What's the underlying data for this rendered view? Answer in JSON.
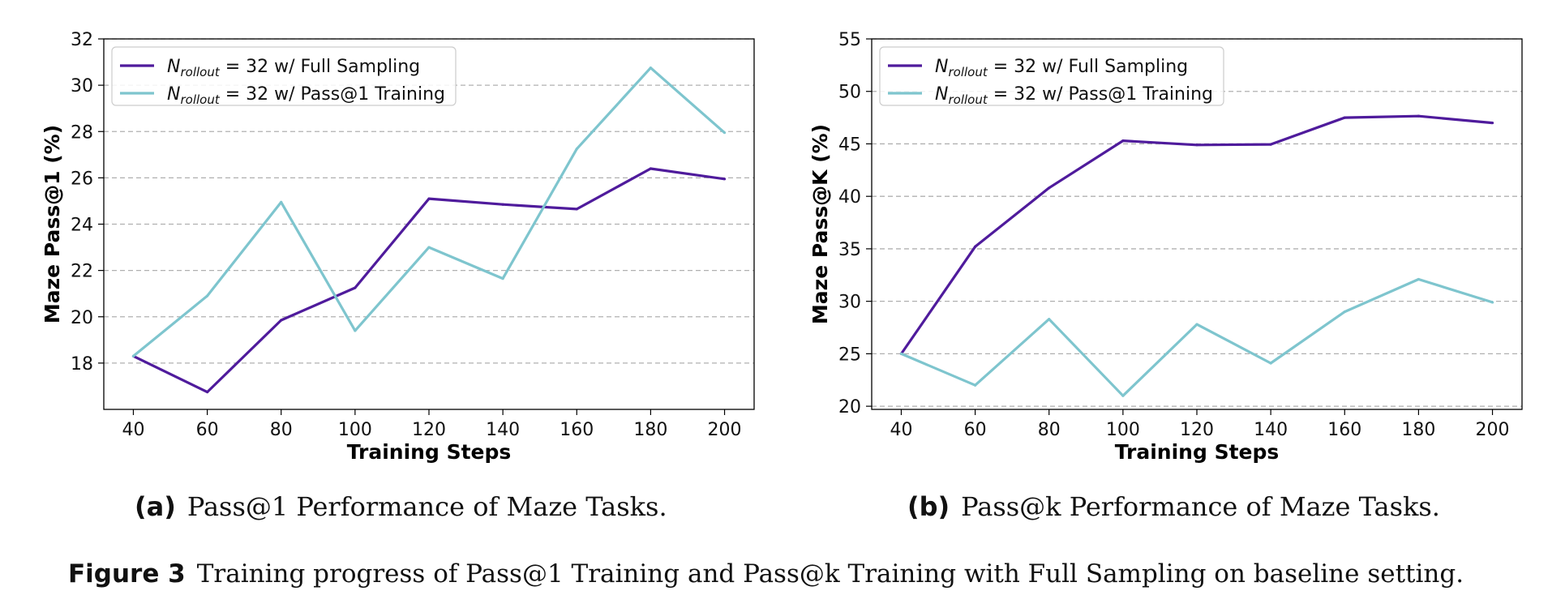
{
  "chart_data": [
    {
      "type": "line",
      "xlabel": "Training Steps",
      "ylabel": "Maze Pass@1 (%)",
      "x": [
        40,
        60,
        80,
        100,
        120,
        140,
        160,
        180,
        200
      ],
      "xticks": [
        40,
        60,
        80,
        100,
        120,
        140,
        160,
        180,
        200
      ],
      "xlim": [
        32,
        208
      ],
      "ylim": [
        16,
        32
      ],
      "yticks": [
        18,
        20,
        22,
        24,
        26,
        28,
        30,
        32
      ],
      "grid": "y-dashed",
      "legend_position": "upper-left",
      "series": [
        {
          "name": "N_rollout = 32 w/ Full Sampling",
          "name_symbol": "N",
          "name_sub": "rollout",
          "name_rest": " = 32 w/ Full Sampling",
          "color": "#4f1b9c",
          "values": [
            18.3,
            16.75,
            19.85,
            21.25,
            25.1,
            24.85,
            24.65,
            26.4,
            25.95
          ]
        },
        {
          "name": "N_rollout = 32 w/ Pass@1 Training",
          "name_symbol": "N",
          "name_sub": "rollout",
          "name_rest": " = 32 w/ Pass@1 Training",
          "color": "#7ec5ce",
          "values": [
            18.3,
            20.9,
            24.95,
            19.4,
            23.0,
            21.65,
            27.25,
            30.75,
            27.95
          ]
        }
      ]
    },
    {
      "type": "line",
      "xlabel": "Training Steps",
      "ylabel": "Maze Pass@K (%)",
      "x": [
        40,
        60,
        80,
        100,
        120,
        140,
        160,
        180,
        200
      ],
      "xticks": [
        40,
        60,
        80,
        100,
        120,
        140,
        160,
        180,
        200
      ],
      "xlim": [
        32,
        208
      ],
      "ylim": [
        19.7,
        55
      ],
      "yticks": [
        20,
        25,
        30,
        35,
        40,
        45,
        50,
        55
      ],
      "grid": "y-dashed",
      "legend_position": "upper-left",
      "series": [
        {
          "name": "N_rollout = 32 w/ Full Sampling",
          "name_symbol": "N",
          "name_sub": "rollout",
          "name_rest": " = 32 w/ Full Sampling",
          "color": "#4f1b9c",
          "values": [
            25.0,
            35.2,
            40.8,
            45.3,
            44.9,
            44.95,
            47.5,
            47.65,
            47.0
          ]
        },
        {
          "name": "N_rollout = 32 w/ Pass@1 Training",
          "name_symbol": "N",
          "name_sub": "rollout",
          "name_rest": " = 32 w/ Pass@1 Training",
          "color": "#7ec5ce",
          "values": [
            25.0,
            22.0,
            28.3,
            21.0,
            27.8,
            24.1,
            29.0,
            32.1,
            29.9
          ]
        }
      ]
    }
  ],
  "captions": {
    "sub_a_label": "(a)",
    "sub_a_text": "Pass@1 Performance of Maze Tasks.",
    "sub_b_label": "(b)",
    "sub_b_text": "Pass@k Performance of Maze Tasks.",
    "figure_label": "Figure 3",
    "figure_text": "Training progress of Pass@1 Training and Pass@k Training with Full Sampling on baseline setting."
  }
}
